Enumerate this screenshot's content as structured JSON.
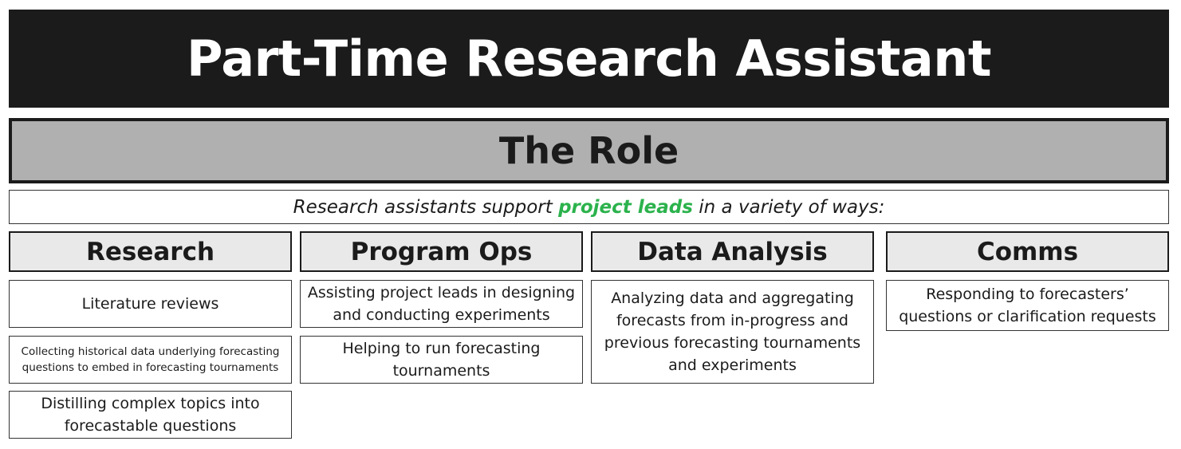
{
  "title": "Part-Time Research Assistant",
  "section_title": "The Role",
  "intro": {
    "before": "Research assistants support ",
    "highlight": "project leads",
    "after": " in a variety of ways:"
  },
  "columns": [
    {
      "heading": "Research",
      "items": [
        "Literature reviews",
        "Collecting historical data underlying forecasting questions to embed in forecasting tournaments",
        "Distilling complex topics into forecastable questions"
      ]
    },
    {
      "heading": "Program Ops",
      "items": [
        "Assisting project leads in designing and conducting experiments",
        "Helping to run forecasting tournaments"
      ]
    },
    {
      "heading": "Data Analysis",
      "items": [
        "Analyzing data and aggregating forecasts from in-progress and previous forecasting tournaments and experiments"
      ]
    },
    {
      "heading": "Comms",
      "items": [
        "Responding to forecasters’ questions or clarification requests"
      ]
    }
  ],
  "colors": {
    "title_background": "#1b1b1b",
    "section_background": "#b0b0b0",
    "highlight": "#2bb24c"
  }
}
